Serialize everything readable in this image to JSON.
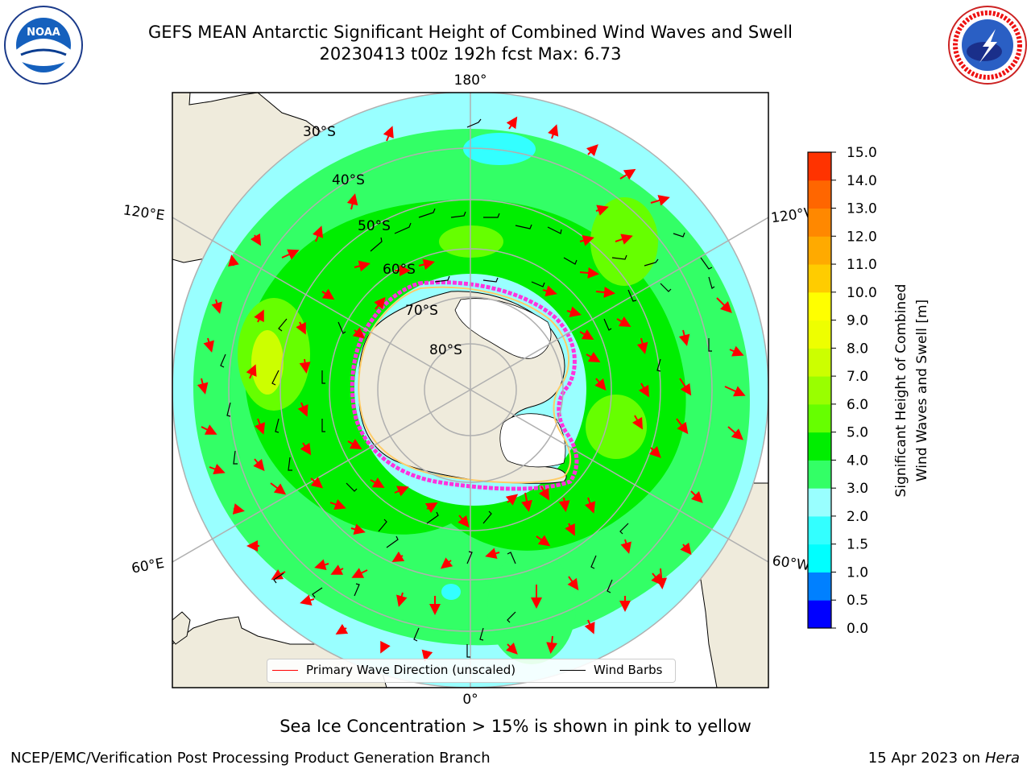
{
  "header": {
    "title_line1": "GEFS MEAN Antarctic Significant Height of Combined Wind Waves and Swell",
    "title_line2": "20230413 t00z 192h fcst   Max: 6.73"
  },
  "logos": {
    "left": {
      "icon": "noaa-logo",
      "text": "NOAA"
    },
    "right": {
      "icon": "nws-logo",
      "text": "NATIONAL WEATHER SERVICE"
    }
  },
  "map": {
    "longitude_labels": {
      "top": "180°",
      "left_upper": "120°E",
      "right_upper": "120°W",
      "left_lower": "60°E",
      "right_lower": "60°W",
      "bottom": "0°"
    },
    "latitude_labels": [
      "30°S",
      "40°S",
      "50°S",
      "60°S",
      "70°S",
      "80°S"
    ],
    "colors": {
      "land": "#efebdc",
      "ice_shelf": "#ffffff",
      "grid": "#b0b0b0",
      "wave_arrow": "#ff0000",
      "wind_barb": "#000000",
      "sea_ice": "#ff33dd"
    }
  },
  "legend": {
    "primary_wave": "Primary Wave Direction (unscaled)",
    "wind_barbs": "Wind Barbs"
  },
  "colorbar": {
    "label_line1": "Significant Height of Combined",
    "label_line2": "Wind Waves and Swell [m]",
    "ticks": [
      "15.0",
      "14.0",
      "13.0",
      "12.0",
      "11.0",
      "10.0",
      "9.0",
      "8.0",
      "7.0",
      "6.0",
      "5.0",
      "4.0",
      "3.0",
      "2.0",
      "1.5",
      "1.0",
      "0.5",
      "0.0"
    ],
    "colors_bottom_to_top": [
      "#0000ff",
      "#0080ff",
      "#00ffff",
      "#33ffff",
      "#99ffff",
      "#33ff66",
      "#00ee00",
      "#66ff00",
      "#99ff00",
      "#ccff00",
      "#eeff00",
      "#ffff00",
      "#ffcc00",
      "#ffaa00",
      "#ff8800",
      "#ff6600",
      "#ff3300"
    ]
  },
  "footer": {
    "note": "Sea Ice Concentration > 15% is shown in pink to yellow",
    "org": "NCEP/EMC/Verification Post Processing Product Generation Branch",
    "date": "15 Apr 2023 on",
    "host": "Hera"
  }
}
